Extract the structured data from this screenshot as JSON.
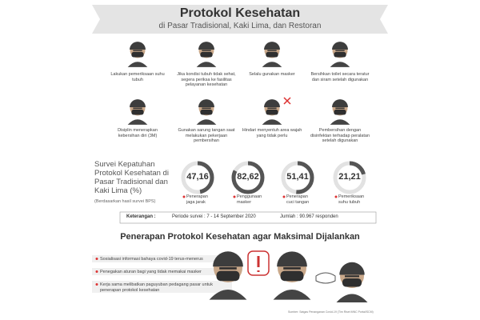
{
  "header": {
    "title": "Protokol Kesehatan",
    "subtitle": "di Pasar Tradisional, Kaki Lima, dan Restoran"
  },
  "protocols": [
    "Lakukan pemeriksaan suhu tubuh",
    "Jika kondisi tubuh tidak sehat, segera periksa ke fasilitas pelayanan kesehatan",
    "Selalu gunakan masker",
    "Bersihkan toilet secara teratur dan siram setelah digunakan",
    "Disiplin menerapkan kebersihan diri (3M)",
    "Gunakan sarung tangan saat melakukan pekerjaan pembersihan",
    "Hindari menyentuh area wajah yang tidak perlu",
    "Pembersihan dengan disinfektan terhadap peralatan setelah digunakan"
  ],
  "survey": {
    "title": "Survei Kepatuhan Protokol Kesehatan di Pasar Tradisional dan Kaki Lima (%)",
    "note": "(Berdasarkan hasil survei BPS)",
    "items": [
      {
        "value": 47.16,
        "label": "47,16",
        "caption": "Penerapan jaga jarak"
      },
      {
        "value": 82.62,
        "label": "82,62",
        "caption": "Penggunaan masker"
      },
      {
        "value": 51.41,
        "label": "51,41",
        "caption": "Penerapan cuci tangan"
      },
      {
        "value": 21.21,
        "label": "21,21",
        "caption": "Pemeriksaan suhu tubuh"
      }
    ]
  },
  "legend": {
    "heading": "Keterangan :",
    "period": "Periode survei : 7 - 14 September 2020",
    "count": "Jumlah : 90.967 responden"
  },
  "recommendations": {
    "heading": "Penerapan Protokol Kesehatan agar Maksimal Dijalankan",
    "items": [
      "Sosialisasi informasi bahaya covid-19 terus-menerus",
      "Penegakan aturan bagi yang tidak memakai masker",
      "Kerja sama melibatkan paguyuban pedagang pasar untuk penerapan protokol kesehatan"
    ]
  },
  "source": "Sumber: Satgas Penanganan Covid-19 (Tim Riset MNC Portal/SCM)"
}
